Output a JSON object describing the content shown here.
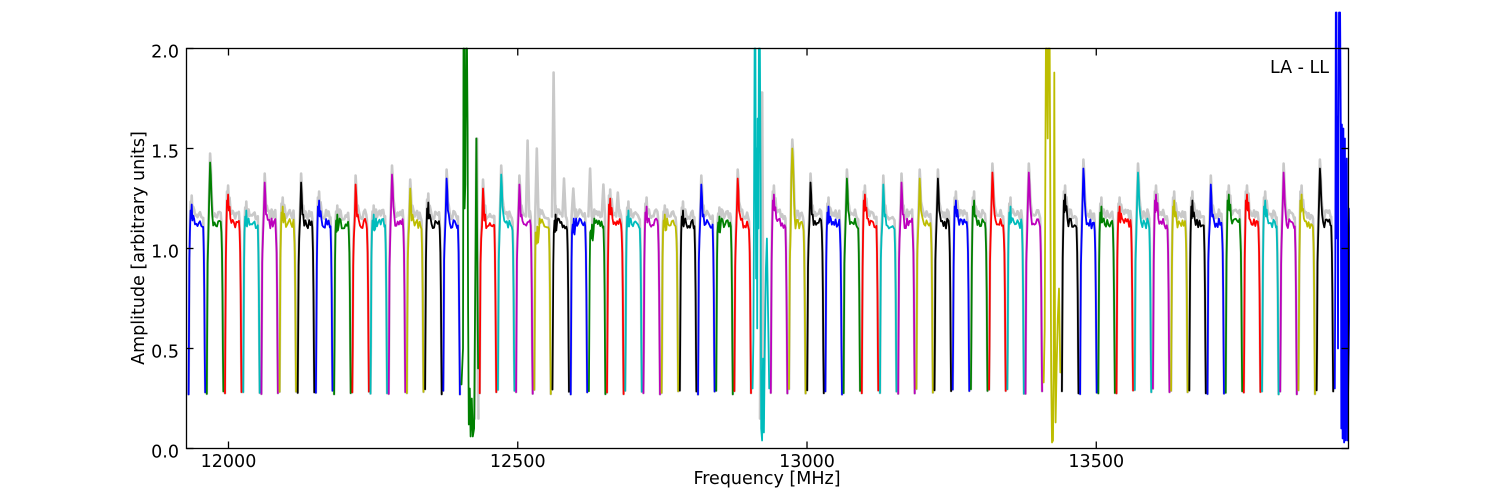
{
  "chart_data": {
    "type": "line",
    "title": "",
    "xlabel": "Frequency [MHz]",
    "ylabel": "Amplitude [arbitrary units]",
    "annotation": "LA - LL",
    "xlim": [
      11927.4,
      13936.0
    ],
    "ylim": [
      0.0,
      2.0
    ],
    "xticks": [
      12000,
      12500,
      13000,
      13500
    ],
    "xtick_labels": [
      "12000",
      "12500",
      "13000",
      "13500"
    ],
    "yticks": [
      0.0,
      0.5,
      1.0,
      1.5,
      2.0
    ],
    "ytick_labels": [
      "0.0",
      "0.5",
      "1.0",
      "1.5",
      "2.0"
    ],
    "grid": false,
    "legend_position": "none",
    "colors": {
      "blue": "#0000ff",
      "green": "#008000",
      "red": "#ff0000",
      "cyan": "#00bcbc",
      "magenta": "#bc00bc",
      "yellow": "#bdbd00",
      "black": "#000000",
      "gray": "#c9c9c9"
    },
    "f_start": 11931.0,
    "f_width": 31.45,
    "gap_mhz": 2.8,
    "plateau": 1.13,
    "edge_min": 0.27,
    "windows": [
      {
        "color": "blue",
        "peak": 1.23
      },
      {
        "color": "green",
        "peak": 1.43
      },
      {
        "color": "red",
        "peak": 1.28
      },
      {
        "color": "cyan",
        "peak": 1.2
      },
      {
        "color": "magenta",
        "peak": 1.33
      },
      {
        "color": "yellow",
        "peak": 1.22
      },
      {
        "color": "black",
        "peak": 1.33
      },
      {
        "color": "blue",
        "peak": 1.25
      },
      {
        "color": "green",
        "peak": 1.18
      },
      {
        "color": "red",
        "peak": 1.32
      },
      {
        "color": "cyan",
        "peak": 1.18
      },
      {
        "color": "magenta",
        "peak": 1.37
      },
      {
        "color": "yellow",
        "peak": 1.3
      },
      {
        "color": "black",
        "peak": 1.24
      },
      {
        "color": "blue",
        "peak": 1.35
      },
      {
        "color": "green",
        "anomalous": true,
        "peak": 2.0,
        "pts": [
          [
            0,
            0.32
          ],
          [
            0.09,
            0.5
          ],
          [
            0.12,
            2.0
          ],
          [
            0.155,
            2.0
          ],
          [
            0.19,
            1.2
          ],
          [
            0.23,
            1.32
          ],
          [
            0.28,
            2.0
          ],
          [
            0.33,
            2.0
          ],
          [
            0.37,
            1.6
          ],
          [
            0.4,
            0.7
          ],
          [
            0.44,
            0.12
          ],
          [
            0.5,
            0.3
          ],
          [
            0.55,
            0.06
          ],
          [
            0.62,
            0.25
          ],
          [
            0.68,
            0.06
          ],
          [
            0.76,
            0.1
          ],
          [
            0.84,
            0.9
          ],
          [
            0.9,
            1.55
          ],
          [
            0.95,
            1.0
          ],
          [
            1,
            0.4
          ]
        ]
      },
      {
        "color": "red",
        "peak": 1.3
      },
      {
        "color": "cyan",
        "peak": 1.37
      },
      {
        "color": "magenta",
        "peak": 1.32
      },
      {
        "color": "yellow",
        "peak": 1.12
      },
      {
        "color": "black",
        "peak": 1.18
      },
      {
        "color": "blue",
        "peak": 1.16
      },
      {
        "color": "green",
        "peak": 1.13
      },
      {
        "color": "red",
        "peak": 1.26
      },
      {
        "color": "cyan",
        "peak": 1.2
      },
      {
        "color": "magenta",
        "peak": 1.22
      },
      {
        "color": "yellow",
        "peak": 1.18
      },
      {
        "color": "black",
        "peak": 1.2
      },
      {
        "color": "blue",
        "peak": 1.32
      },
      {
        "color": "green",
        "peak": 1.17
      },
      {
        "color": "red",
        "peak": 1.35
      },
      {
        "color": "cyan",
        "anomalous": true,
        "peak": 2.0,
        "pts": [
          [
            0,
            0.3
          ],
          [
            0.05,
            0.55
          ],
          [
            0.09,
            1.3
          ],
          [
            0.12,
            2.0
          ],
          [
            0.17,
            2.0
          ],
          [
            0.21,
            0.85
          ],
          [
            0.25,
            1.5
          ],
          [
            0.28,
            0.6
          ],
          [
            0.31,
            1.65
          ],
          [
            0.35,
            1.1
          ],
          [
            0.38,
            2.0
          ],
          [
            0.44,
            2.0
          ],
          [
            0.48,
            1.3
          ],
          [
            0.52,
            0.1
          ],
          [
            0.57,
            0.04
          ],
          [
            0.63,
            0.45
          ],
          [
            0.68,
            0.08
          ],
          [
            0.74,
            0.55
          ],
          [
            0.8,
            0.9
          ],
          [
            0.86,
            1.05
          ],
          [
            0.93,
            0.7
          ],
          [
            1,
            0.3
          ]
        ]
      },
      {
        "color": "magenta",
        "peak": 1.28
      },
      {
        "color": "yellow",
        "peak": 1.5
      },
      {
        "color": "black",
        "peak": 1.33
      },
      {
        "color": "blue",
        "peak": 1.22
      },
      {
        "color": "green",
        "peak": 1.35
      },
      {
        "color": "red",
        "peak": 1.28
      },
      {
        "color": "cyan",
        "peak": 1.32
      },
      {
        "color": "magenta",
        "peak": 1.33
      },
      {
        "color": "yellow",
        "peak": 1.35
      },
      {
        "color": "black",
        "peak": 1.35
      },
      {
        "color": "blue",
        "peak": 1.25
      },
      {
        "color": "green",
        "peak": 1.25
      },
      {
        "color": "red",
        "peak": 1.38
      },
      {
        "color": "cyan",
        "peak": 1.22
      },
      {
        "color": "magenta",
        "peak": 1.38
      },
      {
        "color": "yellow",
        "anomalous": true,
        "peak": 2.0,
        "pts": [
          [
            0,
            0.33
          ],
          [
            0.06,
            0.6
          ],
          [
            0.1,
            1.45
          ],
          [
            0.13,
            2.0
          ],
          [
            0.2,
            2.0
          ],
          [
            0.24,
            1.55
          ],
          [
            0.28,
            2.0
          ],
          [
            0.36,
            2.0
          ],
          [
            0.4,
            1.3
          ],
          [
            0.45,
            0.35
          ],
          [
            0.5,
            0.03
          ],
          [
            0.56,
            0.04
          ],
          [
            0.6,
            0.5
          ],
          [
            0.64,
            1.88
          ],
          [
            0.68,
            0.55
          ],
          [
            0.72,
            0.13
          ],
          [
            0.78,
            0.4
          ],
          [
            0.85,
            0.65
          ],
          [
            0.92,
            0.8
          ],
          [
            1,
            0.38
          ]
        ]
      },
      {
        "color": "black",
        "peak": 1.28
      },
      {
        "color": "blue",
        "peak": 1.4
      },
      {
        "color": "green",
        "peak": 1.22
      },
      {
        "color": "red",
        "peak": 1.22
      },
      {
        "color": "cyan",
        "peak": 1.38
      },
      {
        "color": "magenta",
        "peak": 1.28
      },
      {
        "color": "yellow",
        "peak": 1.25
      },
      {
        "color": "black",
        "peak": 1.25
      },
      {
        "color": "blue",
        "peak": 1.32
      },
      {
        "color": "green",
        "peak": 1.28
      },
      {
        "color": "red",
        "peak": 1.28
      },
      {
        "color": "cyan",
        "peak": 1.25
      },
      {
        "color": "magenta",
        "peak": 1.38
      },
      {
        "color": "yellow",
        "peak": 1.28
      },
      {
        "color": "black",
        "peak": 1.4
      },
      {
        "color": "blue",
        "anomalous": true,
        "peak": 2.18,
        "pts": [
          [
            0,
            0.3
          ],
          [
            0.03,
            0.9
          ],
          [
            0.06,
            2.18
          ],
          [
            0.1,
            2.18
          ],
          [
            0.13,
            1.05
          ],
          [
            0.16,
            1.66
          ],
          [
            0.19,
            0.5
          ],
          [
            0.22,
            1.58
          ],
          [
            0.25,
            2.18
          ],
          [
            0.32,
            2.18
          ],
          [
            0.36,
            1.6
          ],
          [
            0.39,
            0.1
          ],
          [
            0.43,
            1.62
          ],
          [
            0.47,
            0.05
          ],
          [
            0.52,
            1.6
          ],
          [
            0.56,
            0.03
          ],
          [
            0.61,
            1.55
          ],
          [
            0.66,
            0.04
          ],
          [
            0.72,
            1.45
          ],
          [
            0.78,
            0.04
          ],
          [
            0.85,
            1.2
          ],
          [
            0.93,
            0.6
          ],
          [
            1,
            0.05
          ]
        ]
      }
    ],
    "gray_spikes": [
      {
        "f": 12429,
        "a": 1.55
      },
      {
        "f": 12517,
        "a": 1.54
      },
      {
        "f": 12533,
        "a": 1.5
      },
      {
        "f": 12562,
        "a": 1.88
      },
      {
        "f": 12580,
        "a": 1.35
      },
      {
        "f": 12596,
        "a": 1.3
      },
      {
        "f": 12625,
        "a": 1.4
      },
      {
        "f": 12648,
        "a": 1.32
      },
      {
        "f": 12673,
        "a": 1.28
      },
      {
        "f": 12922,
        "a": 1.78
      }
    ]
  }
}
